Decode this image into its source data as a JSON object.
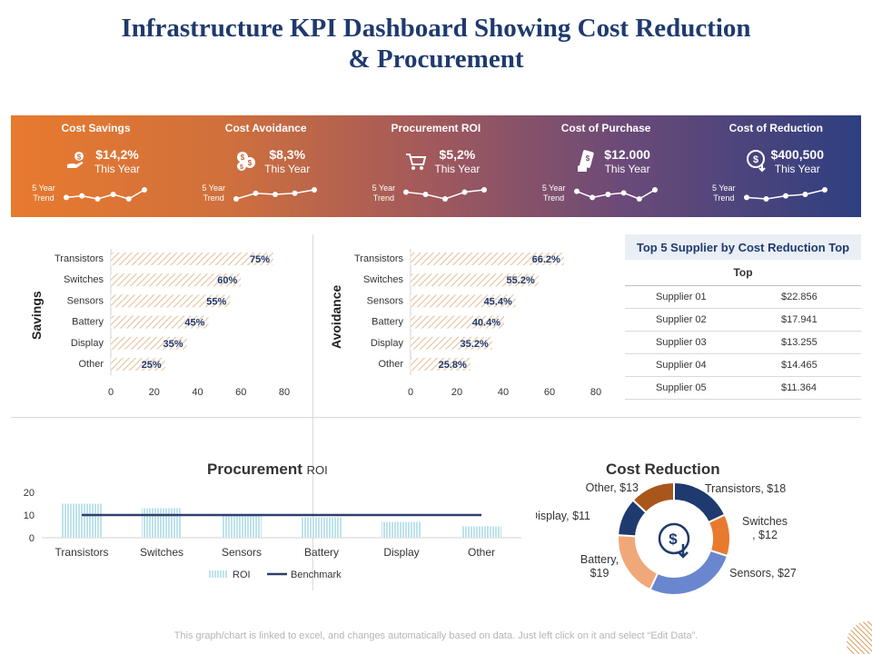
{
  "title_line1": "Infrastructure KPI Dashboard Showing Cost Reduction",
  "title_line2": "& Procurement",
  "kpis": [
    {
      "title": "Cost Savings",
      "value": "$14,2%",
      "sub": "This Year",
      "trend_label": "5 Year Trend",
      "icon": "hand-money-icon",
      "trend": [
        3,
        4,
        2,
        5,
        2,
        8
      ]
    },
    {
      "title": "Cost Avoidance",
      "value": "$8,3%",
      "sub": "This Year",
      "trend_label": "5 Year Trend",
      "icon": "coins-icon",
      "trend": [
        1,
        6,
        5,
        6,
        9
      ]
    },
    {
      "title": "Procurement ROI",
      "value": "$5,2%",
      "sub": "This Year",
      "trend_label": "5 Year Trend",
      "icon": "cart-icon",
      "trend": [
        5,
        4,
        2,
        5,
        6
      ]
    },
    {
      "title": "Cost of Purchase",
      "value": "$12.000",
      "sub": "This Year",
      "trend_label": "5 Year Trend",
      "icon": "payment-icon",
      "trend": [
        6,
        2,
        4,
        5,
        1,
        7
      ]
    },
    {
      "title": "Cost of Reduction",
      "value": "$400,500",
      "sub": "This Year",
      "trend_label": "5 Year Trend",
      "icon": "dollar-down-icon",
      "trend": [
        2,
        1,
        3,
        4,
        7
      ]
    }
  ],
  "colors": {
    "accent": "#1f3a6e",
    "orange": "#e87a2e",
    "bar_hatch": "#e8c8a8",
    "roi_hatch": "#a8d8e4",
    "benchmark": "#2e3f6e"
  },
  "supplier_table": {
    "title": "Top 5 Supplier by Cost Reduction Top",
    "subheader": "Top",
    "rows": [
      {
        "name": "Supplier 01",
        "value": "$22.856"
      },
      {
        "name": "Supplier 02",
        "value": "$17.941"
      },
      {
        "name": "Supplier 03",
        "value": "$13.255"
      },
      {
        "name": "Supplier 04",
        "value": "$14.465"
      },
      {
        "name": "Supplier 05",
        "value": "$11.364"
      }
    ]
  },
  "procurement_title_main": "Procurement",
  "procurement_title_small": "ROI",
  "footnote": "This graph/chart is linked to excel, and changes automatically based on data. Just left click on it and select “Edit Data”.",
  "chart_data": [
    {
      "type": "bar",
      "orientation": "horizontal",
      "ylabel": "Savings",
      "categories": [
        "Transistors",
        "Switches",
        "Sensors",
        "Battery",
        "Display",
        "Other"
      ],
      "values": [
        75,
        60,
        55,
        45,
        35,
        25
      ],
      "data_labels": [
        "75%",
        "60%",
        "55%",
        "45%",
        "35%",
        "25%"
      ],
      "xlim": [
        0,
        80
      ],
      "xticks": [
        "0",
        "20",
        "40",
        "60",
        "80"
      ]
    },
    {
      "type": "bar",
      "orientation": "horizontal",
      "ylabel": "Avoidance",
      "categories": [
        "Transistors",
        "Switches",
        "Sensors",
        "Battery",
        "Display",
        "Other"
      ],
      "values": [
        66.2,
        55.2,
        45.4,
        40.4,
        35.2,
        25.8
      ],
      "data_labels": [
        "66.2%",
        "55.2%",
        "45.4%",
        "40.4%",
        "35.2%",
        "25.8%"
      ],
      "xlim": [
        0,
        80
      ],
      "xticks": [
        "0",
        "20",
        "40",
        "60",
        "80"
      ]
    },
    {
      "type": "bar",
      "title": "Procurement ROI",
      "categories": [
        "Transistors",
        "Switches",
        "Sensors",
        "Battery",
        "Display",
        "Other"
      ],
      "series": [
        {
          "name": "ROI",
          "values": [
            15,
            13,
            10,
            9,
            7,
            5
          ]
        },
        {
          "name": "Benchmark",
          "values": [
            10,
            10,
            10,
            10,
            10,
            10
          ]
        }
      ],
      "ylim": [
        0,
        20
      ],
      "yticks": [
        "0",
        "10",
        "20"
      ]
    },
    {
      "type": "pie",
      "title": "Cost Reduction",
      "labels": [
        "Transistors, $18",
        "Switches\n, $12",
        "Sensors, $27",
        "Battery,\n$19",
        "Display, $11",
        "Other, $13"
      ],
      "names": [
        "Transistors",
        "Switches",
        "Sensors",
        "Battery",
        "Display",
        "Other"
      ],
      "values": [
        18,
        12,
        27,
        19,
        11,
        13
      ],
      "colors": [
        "#1f3a6e",
        "#e87a2e",
        "#6a86cf",
        "#f0a878",
        "#1f3a6e",
        "#a8561c"
      ]
    }
  ]
}
